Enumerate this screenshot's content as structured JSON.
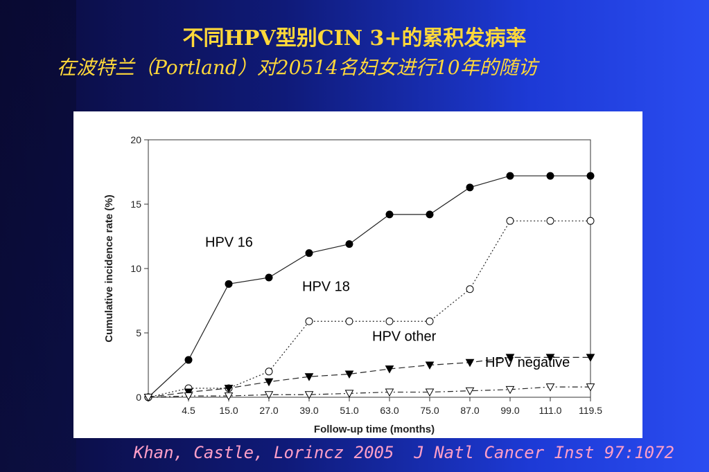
{
  "slide": {
    "title": "不同HPV型别CIN 3+的累积发病率",
    "subtitle": "在波特兰（Portland）对20514名妇女进行10年的随访",
    "citation": "Khan, Castle, Lorincz 2005  J Natl Cancer Inst 97:1072"
  },
  "chart_data": {
    "type": "line",
    "xlabel": "Follow-up time (months)",
    "ylabel": "Cumulative incidence rate (%)",
    "x_tick_labels": [
      "4.5",
      "15.0",
      "27.0",
      "39.0",
      "51.0",
      "63.0",
      "75.0",
      "87.0",
      "99.0",
      "111.0",
      "119.5"
    ],
    "x": [
      0,
      4.5,
      15.0,
      27.0,
      39.0,
      51.0,
      63.0,
      75.0,
      87.0,
      99.0,
      111.0,
      119.5
    ],
    "ylim": [
      0,
      20
    ],
    "y_ticks": [
      0,
      5,
      10,
      15,
      20
    ],
    "grid": false,
    "series": [
      {
        "name": "HPV 16",
        "marker": "filled-circle",
        "line": "solid",
        "values": [
          0,
          2.9,
          8.8,
          9.3,
          11.2,
          11.9,
          14.2,
          14.2,
          16.3,
          17.2,
          17.2,
          17.2
        ]
      },
      {
        "name": "HPV 18",
        "marker": "open-circle",
        "line": "dotted",
        "values": [
          0,
          0.7,
          0.7,
          2.0,
          5.9,
          5.9,
          5.9,
          5.9,
          8.4,
          13.7,
          13.7,
          13.7
        ]
      },
      {
        "name": "HPV other",
        "marker": "filled-triangle-down",
        "line": "dashed",
        "values": [
          0,
          0.4,
          0.7,
          1.2,
          1.6,
          1.8,
          2.2,
          2.5,
          2.7,
          3.1,
          3.1,
          3.1
        ]
      },
      {
        "name": "HPV negative",
        "marker": "open-triangle-down",
        "line": "dash-dot",
        "values": [
          0,
          0.1,
          0.1,
          0.2,
          0.2,
          0.3,
          0.4,
          0.4,
          0.5,
          0.6,
          0.8,
          0.8
        ]
      }
    ]
  }
}
